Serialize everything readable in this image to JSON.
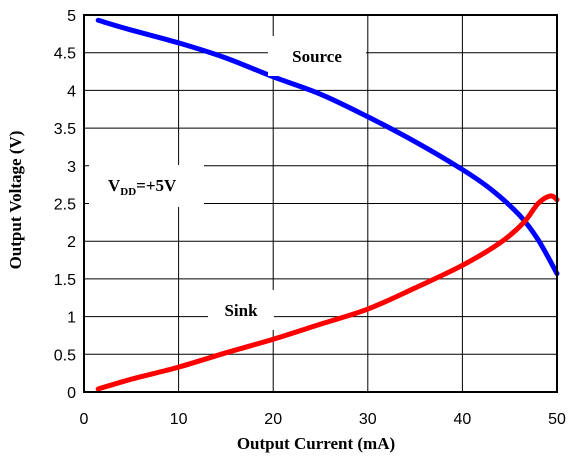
{
  "chart_data": {
    "type": "line",
    "title": "",
    "xlabel": "Output Current (mA)",
    "ylabel": "Output Voltage (V)",
    "xlim": [
      0,
      50
    ],
    "ylim": [
      0,
      5
    ],
    "xticks": [
      "0",
      "10",
      "20",
      "30",
      "40",
      "50"
    ],
    "yticks": [
      "0",
      "0.5",
      "1",
      "1.5",
      "2",
      "2.5",
      "3",
      "3.5",
      "4",
      "4.5",
      "5"
    ],
    "grid": true,
    "legend": "none",
    "series": [
      {
        "name": "Source",
        "color": "#0000ff",
        "x": [
          1.5,
          5,
          10,
          15,
          20,
          25,
          30,
          35,
          40,
          43,
          46,
          48,
          50
        ],
        "y": [
          4.93,
          4.8,
          4.63,
          4.43,
          4.18,
          3.95,
          3.65,
          3.32,
          2.95,
          2.69,
          2.35,
          2.02,
          1.57
        ]
      },
      {
        "name": "Sink",
        "color": "#ff0000",
        "x": [
          1.5,
          5,
          10,
          15,
          20,
          25,
          30,
          35,
          40,
          44,
          46.5,
          48,
          49.3,
          50
        ],
        "y": [
          0.04,
          0.17,
          0.33,
          0.52,
          0.7,
          0.9,
          1.1,
          1.38,
          1.68,
          1.98,
          2.25,
          2.5,
          2.6,
          2.55
        ]
      }
    ],
    "annotations": {
      "source_label": "Source",
      "sink_label": "Sink",
      "vdd_main": "V",
      "vdd_sub": "DD",
      "vdd_rest": "=+5V"
    }
  }
}
